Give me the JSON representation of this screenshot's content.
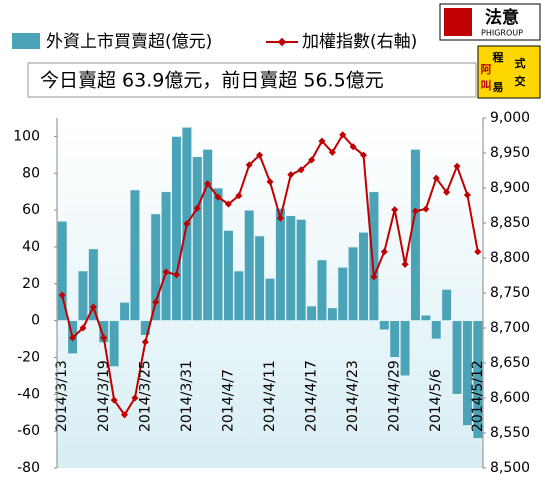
{
  "chart_data": {
    "type": "bar_line",
    "subtitle": "今日賣超 63.9億元，前日賣超 56.5億元",
    "logo": {
      "name": "法意",
      "group": "PHIGROUP",
      "chars": [
        "程",
        "式",
        "交",
        "易",
        "阿",
        "叫"
      ]
    },
    "categories": [
      "2014/3/13",
      null,
      null,
      null,
      "2014/3/19",
      null,
      null,
      null,
      "2014/3/25",
      null,
      null,
      null,
      "2014/3/31",
      null,
      null,
      null,
      "2014/4/7",
      null,
      null,
      null,
      "2014/4/11",
      null,
      null,
      null,
      "2014/4/17",
      null,
      null,
      null,
      "2014/4/23",
      null,
      null,
      null,
      "2014/4/29",
      null,
      null,
      null,
      "2014/5/6",
      null,
      null,
      null,
      "2014/5/12"
    ],
    "series": [
      {
        "name": "外資上市買賣超(億元)",
        "color": "#4ba3b8",
        "axis": "y",
        "values": [
          54,
          -18,
          27,
          39,
          -12,
          -25,
          10,
          71,
          -8,
          58,
          70,
          100,
          105,
          89,
          93,
          72,
          49,
          27,
          60,
          46,
          23,
          61,
          57,
          55,
          8,
          33,
          7,
          29,
          40,
          48,
          70,
          -5,
          -20,
          -30,
          93,
          3,
          -10,
          17,
          -40,
          -57,
          -64
        ]
      },
      {
        "name": "加權指數(右軸)",
        "color": "#c00000",
        "axis": "y2",
        "values": [
          8747,
          8686,
          8700,
          8730,
          8686,
          8597,
          8576,
          8600,
          8680,
          8737,
          8780,
          8776,
          8849,
          8871,
          8906,
          8887,
          8877,
          8889,
          8933,
          8947,
          8909,
          8857,
          8919,
          8926,
          8940,
          8967,
          8951,
          8976,
          8959,
          8947,
          8773,
          8809,
          8869,
          8791,
          8867,
          8870,
          8914,
          8894,
          8931,
          8890,
          8809
        ]
      }
    ],
    "ylim": [
      -80,
      110
    ],
    "yticks": [
      -80,
      -60,
      -40,
      -20,
      0,
      20,
      40,
      60,
      80,
      100
    ],
    "y2lim": [
      8500,
      9000
    ],
    "y2ticks": [
      {
        "value": 8500,
        "label": "8,500"
      },
      {
        "value": 8550,
        "label": "8,550"
      },
      {
        "value": 8600,
        "label": "8,600"
      },
      {
        "value": 8650,
        "label": "8,650"
      },
      {
        "value": 8700,
        "label": "8,700"
      },
      {
        "value": 8750,
        "label": "8,750"
      },
      {
        "value": 8800,
        "label": "8,800"
      },
      {
        "value": 8850,
        "label": "8,850"
      },
      {
        "value": 8900,
        "label": "8,900"
      },
      {
        "value": 8950,
        "label": "8,950"
      },
      {
        "value": 9000,
        "label": "9,000"
      }
    ]
  }
}
